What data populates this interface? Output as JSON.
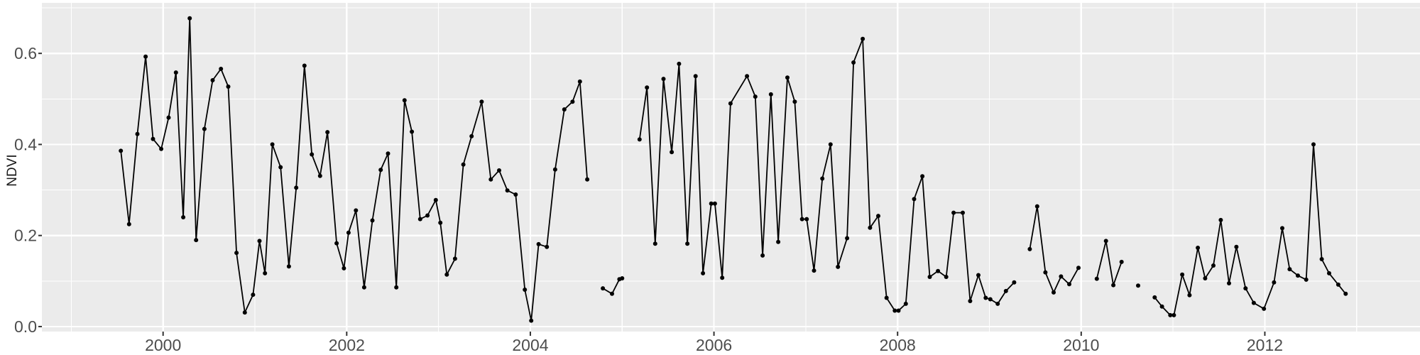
{
  "figure": {
    "outer_background": "#FFFFFF",
    "panel_background": "#EBEBEB",
    "grid_color": "#FFFFFF",
    "line_color": "#000000",
    "point_color": "#000000",
    "tick_mark_color": "#333333",
    "tick_label_color": "#4D4D4D",
    "axis_title_color": "#1A1A1A"
  },
  "chart_data": {
    "type": "line",
    "title": "",
    "xlabel": "",
    "ylabel": "NDVI",
    "grid": true,
    "legend": false,
    "xlim": [
      1998.68,
      2013.69
    ],
    "ylim": [
      -0.011,
      0.711
    ],
    "x_ticks": [
      2000,
      2002,
      2004,
      2006,
      2008,
      2010,
      2012
    ],
    "x_tick_labels": [
      "2000",
      "2002",
      "2004",
      "2006",
      "2008",
      "2010",
      "2012"
    ],
    "x_minor_ticks": [
      1999,
      2001,
      2003,
      2005,
      2007,
      2009,
      2011,
      2013
    ],
    "y_ticks": [
      0.0,
      0.2,
      0.4,
      0.6
    ],
    "y_tick_labels": [
      "0.0",
      "0.2",
      "0.4",
      "0.6"
    ],
    "y_minor_ticks": [
      0.1,
      0.3,
      0.5,
      0.7
    ],
    "series": [
      {
        "name": "NDVI",
        "segments": [
          [
            [
              1999.54,
              0.386
            ],
            [
              1999.63,
              0.225
            ],
            [
              1999.72,
              0.423
            ],
            [
              1999.81,
              0.593
            ],
            [
              1999.89,
              0.412
            ],
            [
              1999.98,
              0.39
            ],
            [
              2000.06,
              0.459
            ],
            [
              2000.14,
              0.558
            ],
            [
              2000.22,
              0.24
            ],
            [
              2000.29,
              0.677
            ],
            [
              2000.36,
              0.19
            ],
            [
              2000.45,
              0.434
            ],
            [
              2000.54,
              0.541
            ],
            [
              2000.63,
              0.566
            ],
            [
              2000.71,
              0.527
            ],
            [
              2000.8,
              0.162
            ],
            [
              2000.89,
              0.031
            ],
            [
              2000.98,
              0.07
            ],
            [
              2001.05,
              0.188
            ],
            [
              2001.11,
              0.117
            ],
            [
              2001.19,
              0.4
            ],
            [
              2001.28,
              0.35
            ],
            [
              2001.37,
              0.132
            ],
            [
              2001.45,
              0.305
            ],
            [
              2001.54,
              0.573
            ],
            [
              2001.62,
              0.378
            ],
            [
              2001.71,
              0.331
            ],
            [
              2001.79,
              0.427
            ],
            [
              2001.89,
              0.183
            ],
            [
              2001.97,
              0.128
            ],
            [
              2002.02,
              0.206
            ],
            [
              2002.1,
              0.255
            ],
            [
              2002.19,
              0.086
            ],
            [
              2002.28,
              0.233
            ],
            [
              2002.37,
              0.344
            ],
            [
              2002.45,
              0.38
            ],
            [
              2002.54,
              0.086
            ],
            [
              2002.63,
              0.497
            ],
            [
              2002.71,
              0.428
            ],
            [
              2002.8,
              0.236
            ],
            [
              2002.88,
              0.244
            ],
            [
              2002.97,
              0.278
            ],
            [
              2003.02,
              0.228
            ],
            [
              2003.09,
              0.114
            ],
            [
              2003.18,
              0.149
            ],
            [
              2003.27,
              0.356
            ],
            [
              2003.36,
              0.418
            ],
            [
              2003.47,
              0.494
            ],
            [
              2003.57,
              0.323
            ],
            [
              2003.66,
              0.343
            ],
            [
              2003.75,
              0.299
            ],
            [
              2003.84,
              0.29
            ],
            [
              2003.94,
              0.081
            ],
            [
              2004.01,
              0.013
            ],
            [
              2004.09,
              0.181
            ],
            [
              2004.18,
              0.175
            ],
            [
              2004.27,
              0.345
            ],
            [
              2004.37,
              0.477
            ],
            [
              2004.46,
              0.494
            ],
            [
              2004.54,
              0.538
            ],
            [
              2004.62,
              0.323
            ]
          ],
          [
            [
              2004.79,
              0.084
            ],
            [
              2004.89,
              0.072
            ],
            [
              2004.97,
              0.104
            ],
            [
              2005.0,
              0.106
            ]
          ],
          [
            [
              2005.19,
              0.411
            ],
            [
              2005.27,
              0.525
            ],
            [
              2005.36,
              0.182
            ],
            [
              2005.45,
              0.544
            ],
            [
              2005.54,
              0.383
            ],
            [
              2005.62,
              0.577
            ],
            [
              2005.71,
              0.182
            ],
            [
              2005.8,
              0.55
            ],
            [
              2005.88,
              0.117
            ],
            [
              2005.97,
              0.27
            ],
            [
              2006.01,
              0.27
            ],
            [
              2006.09,
              0.107
            ],
            [
              2006.18,
              0.49
            ],
            [
              2006.36,
              0.55
            ],
            [
              2006.45,
              0.505
            ],
            [
              2006.53,
              0.156
            ],
            [
              2006.62,
              0.51
            ],
            [
              2006.7,
              0.186
            ],
            [
              2006.8,
              0.547
            ],
            [
              2006.88,
              0.494
            ],
            [
              2006.96,
              0.236
            ],
            [
              2007.01,
              0.236
            ],
            [
              2007.09,
              0.123
            ],
            [
              2007.18,
              0.325
            ],
            [
              2007.27,
              0.4
            ],
            [
              2007.35,
              0.131
            ],
            [
              2007.45,
              0.194
            ],
            [
              2007.52,
              0.58
            ],
            [
              2007.62,
              0.632
            ],
            [
              2007.7,
              0.217
            ],
            [
              2007.79,
              0.243
            ],
            [
              2007.88,
              0.063
            ],
            [
              2007.97,
              0.035
            ],
            [
              2008.01,
              0.035
            ],
            [
              2008.09,
              0.05
            ],
            [
              2008.18,
              0.28
            ],
            [
              2008.27,
              0.33
            ],
            [
              2008.35,
              0.109
            ],
            [
              2008.44,
              0.122
            ],
            [
              2008.53,
              0.109
            ],
            [
              2008.61,
              0.25
            ],
            [
              2008.71,
              0.25
            ],
            [
              2008.79,
              0.056
            ],
            [
              2008.88,
              0.113
            ],
            [
              2008.96,
              0.063
            ],
            [
              2009.01,
              0.06
            ],
            [
              2009.09,
              0.05
            ],
            [
              2009.18,
              0.078
            ],
            [
              2009.27,
              0.097
            ]
          ],
          [
            [
              2009.44,
              0.17
            ],
            [
              2009.52,
              0.264
            ],
            [
              2009.61,
              0.119
            ],
            [
              2009.7,
              0.075
            ],
            [
              2009.78,
              0.11
            ],
            [
              2009.87,
              0.093
            ],
            [
              2009.97,
              0.129
            ]
          ],
          [
            [
              2010.17,
              0.105
            ],
            [
              2010.27,
              0.188
            ],
            [
              2010.35,
              0.091
            ],
            [
              2010.44,
              0.142
            ]
          ],
          [
            [
              2010.62,
              0.09
            ]
          ],
          [
            [
              2010.8,
              0.064
            ],
            [
              2010.88,
              0.044
            ],
            [
              2010.97,
              0.025
            ],
            [
              2011.01,
              0.025
            ],
            [
              2011.1,
              0.114
            ],
            [
              2011.18,
              0.069
            ],
            [
              2011.27,
              0.173
            ],
            [
              2011.35,
              0.106
            ],
            [
              2011.44,
              0.134
            ],
            [
              2011.52,
              0.234
            ],
            [
              2011.61,
              0.095
            ],
            [
              2011.69,
              0.175
            ],
            [
              2011.79,
              0.084
            ],
            [
              2011.88,
              0.052
            ],
            [
              2011.99,
              0.039
            ],
            [
              2012.1,
              0.097
            ],
            [
              2012.19,
              0.216
            ],
            [
              2012.27,
              0.126
            ],
            [
              2012.36,
              0.112
            ],
            [
              2012.45,
              0.103
            ],
            [
              2012.53,
              0.4
            ],
            [
              2012.62,
              0.148
            ],
            [
              2012.7,
              0.117
            ],
            [
              2012.8,
              0.092
            ],
            [
              2012.88,
              0.072
            ]
          ]
        ]
      }
    ]
  }
}
